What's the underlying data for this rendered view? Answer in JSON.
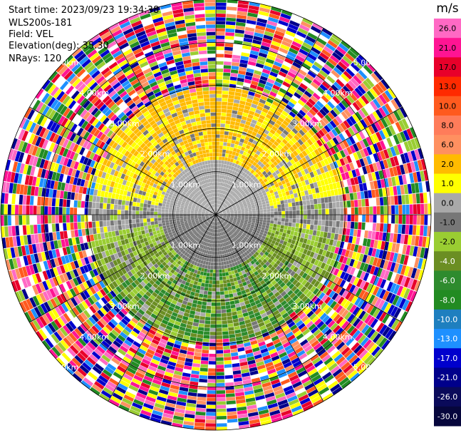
{
  "header": {
    "start_time": "Start time: 2023/09/23 19:34:38",
    "instrument": "WLS200s-181",
    "field": "Field: VEL",
    "elevation": "Elevation(deg): 35.30",
    "nrays": "NRays: 120"
  },
  "chart_data": {
    "type": "heatmap",
    "projection": "polar-ppi",
    "field": "VEL",
    "units": "m/s",
    "nrays": 120,
    "elevation_deg": 35.3,
    "max_range_km": 5.0,
    "range_ring_labels": [
      "1.00km",
      "2.00km",
      "3.00km",
      "4.00km",
      "5.00km"
    ],
    "range_rings_km": [
      1,
      2,
      3,
      4,
      5
    ],
    "spoke_angles_deg": [
      0,
      30,
      60,
      90,
      120,
      150,
      180,
      210,
      240,
      270,
      300,
      330
    ],
    "colorbar": {
      "label": "m/s",
      "ticks": [
        "26.0",
        "21.0",
        "17.0",
        "13.0",
        "10.0",
        "8.0",
        "6.0",
        "2.0",
        "1.0",
        "0.0",
        "-1.0",
        "-2.0",
        "-4.0",
        "-6.0",
        "-8.0",
        "-10.0",
        "-13.0",
        "-17.0",
        "-21.0",
        "-26.0",
        "-30.0"
      ],
      "bins": [
        {
          "lo": 26,
          "hi": 30,
          "color": "#ff69c4"
        },
        {
          "lo": 21,
          "hi": 26,
          "color": "#ff1493"
        },
        {
          "lo": 17,
          "hi": 21,
          "color": "#e8002a"
        },
        {
          "lo": 13,
          "hi": 17,
          "color": "#ff2a00"
        },
        {
          "lo": 10,
          "hi": 13,
          "color": "#ff5a1e"
        },
        {
          "lo": 8,
          "hi": 10,
          "color": "#ff7c5a"
        },
        {
          "lo": 6,
          "hi": 8,
          "color": "#ff9060"
        },
        {
          "lo": 2,
          "hi": 6,
          "color": "#ffbb00"
        },
        {
          "lo": 1,
          "hi": 2,
          "color": "#ffff00"
        },
        {
          "lo": 0,
          "hi": 1,
          "color": "#a9a9a9"
        },
        {
          "lo": -1,
          "hi": 0,
          "color": "#777777"
        },
        {
          "lo": -2,
          "hi": -1,
          "color": "#9acd32"
        },
        {
          "lo": -4,
          "hi": -2,
          "color": "#6b8e23"
        },
        {
          "lo": -6,
          "hi": -4,
          "color": "#2e8b2e"
        },
        {
          "lo": -8,
          "hi": -6,
          "color": "#228b22"
        },
        {
          "lo": -10,
          "hi": -8,
          "color": "#1e7fbf"
        },
        {
          "lo": -13,
          "hi": -10,
          "color": "#1e90ff"
        },
        {
          "lo": -17,
          "hi": -13,
          "color": "#0000cd"
        },
        {
          "lo": -21,
          "hi": -17,
          "color": "#00008b"
        },
        {
          "lo": -26,
          "hi": -21,
          "color": "#0a0a5a"
        },
        {
          "lo": -30,
          "hi": -26,
          "color": "#06063c"
        }
      ]
    },
    "velocity_pattern": {
      "zones": [
        {
          "range_km": [
            0,
            1.2
          ],
          "north_half": [
            0,
            1
          ],
          "south_half": [
            -1,
            0
          ]
        },
        {
          "range_km": [
            1.2,
            3.0
          ],
          "north_half": [
            1,
            6
          ],
          "south_half": [
            -8,
            -1
          ]
        },
        {
          "range_km": [
            3.0,
            5.0
          ],
          "pattern": "noise"
        }
      ],
      "noise_palette": [
        "#ff1493",
        "#0000cd",
        "#ff69c4",
        "#ffff00",
        "#e8002a",
        "#00008b",
        "#ff5a1e",
        "#9acd32",
        "#ffffff",
        "#228b22",
        "#1e90ff",
        "#ff9060"
      ]
    }
  }
}
